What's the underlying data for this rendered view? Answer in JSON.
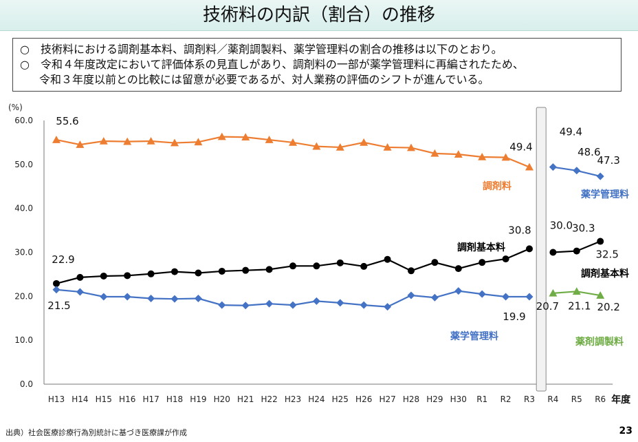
{
  "title": "技術料の内訳（割合）の推移",
  "notes": [
    "○　技術料における調剤基本料、調剤料／薬剤調製料、薬学管理料の割合の推移は以下のとおり。",
    "○　令和４年度改定において評価体系の見直しがあり、調剤料の一部が薬学管理料に再編されたため、",
    "令和３年度以前との比較には留意が必要であるが、対人業務の評価のシフトが進んでいる。"
  ],
  "source": "出典）社会医療診療行為別統計に基づき医療課が作成",
  "page_number": "23",
  "chart_data": {
    "type": "line",
    "title": "",
    "ylabel": "(%)",
    "xlabel": "年度",
    "ylim": [
      0,
      60
    ],
    "yticks": [
      "0.0",
      "10.0",
      "20.0",
      "30.0",
      "40.0",
      "50.0",
      "60.0"
    ],
    "grid": false,
    "categories": [
      "H13",
      "H14",
      "H15",
      "H16",
      "H17",
      "H18",
      "H19",
      "H20",
      "H21",
      "H22",
      "H23",
      "H24",
      "H25",
      "H26",
      "H27",
      "H28",
      "H29",
      "H30",
      "R1",
      "R2",
      "R3",
      "R4",
      "R5",
      "R6"
    ],
    "break_after": "R3",
    "series": [
      {
        "name": "調剤料",
        "color": "#ed7d31",
        "marker": "triangle",
        "values": [
          55.6,
          54.5,
          55.3,
          55.2,
          55.3,
          54.9,
          55.1,
          56.3,
          56.2,
          55.6,
          55.0,
          54.1,
          53.9,
          55.0,
          53.9,
          53.8,
          52.5,
          52.3,
          51.7,
          51.6,
          49.4,
          null,
          null,
          null
        ],
        "labels": [
          {
            "index": 0,
            "text": "55.6"
          },
          {
            "index": 20,
            "text": "49.4"
          }
        ]
      },
      {
        "name": "調剤基本料",
        "color": "#000000",
        "marker": "circle",
        "values": [
          22.9,
          24.3,
          24.6,
          24.7,
          25.1,
          25.6,
          25.3,
          25.7,
          25.9,
          26.1,
          26.9,
          26.9,
          27.6,
          26.8,
          28.4,
          25.8,
          27.7,
          26.3,
          27.7,
          28.5,
          30.8,
          null,
          null,
          null
        ],
        "labels": [
          {
            "index": 0,
            "text": "22.9"
          },
          {
            "index": 20,
            "text": "30.8"
          }
        ]
      },
      {
        "name": "薬学管理料",
        "color": "#4472c4",
        "marker": "diamond",
        "values": [
          21.5,
          21.0,
          19.9,
          19.9,
          19.5,
          19.4,
          19.5,
          18.0,
          17.9,
          18.3,
          18.0,
          18.9,
          18.5,
          18.0,
          17.6,
          20.2,
          19.7,
          21.2,
          20.5,
          19.9,
          19.9,
          null,
          null,
          null
        ],
        "labels": [
          {
            "index": 0,
            "text": "21.5"
          },
          {
            "index": 20,
            "text": "19.9"
          }
        ]
      },
      {
        "name": "薬学管理料",
        "color": "#4472c4",
        "marker": "diamond",
        "values": [
          null,
          null,
          null,
          null,
          null,
          null,
          null,
          null,
          null,
          null,
          null,
          null,
          null,
          null,
          null,
          null,
          null,
          null,
          null,
          null,
          null,
          49.4,
          48.6,
          47.3
        ],
        "labels": [
          {
            "index": 21,
            "text": "49.4"
          },
          {
            "index": 22,
            "text": "48.6"
          },
          {
            "index": 23,
            "text": "47.3"
          }
        ]
      },
      {
        "name": "調剤基本料",
        "color": "#000000",
        "marker": "circle",
        "values": [
          null,
          null,
          null,
          null,
          null,
          null,
          null,
          null,
          null,
          null,
          null,
          null,
          null,
          null,
          null,
          null,
          null,
          null,
          null,
          null,
          null,
          30.0,
          30.3,
          32.5
        ],
        "labels": [
          {
            "index": 21,
            "text": "30.0"
          },
          {
            "index": 22,
            "text": "30.3"
          },
          {
            "index": 23,
            "text": "32.5"
          }
        ]
      },
      {
        "name": "薬剤調製料",
        "color": "#70ad47",
        "marker": "triangle",
        "values": [
          null,
          null,
          null,
          null,
          null,
          null,
          null,
          null,
          null,
          null,
          null,
          null,
          null,
          null,
          null,
          null,
          null,
          null,
          null,
          null,
          null,
          20.7,
          21.1,
          20.2
        ],
        "labels": [
          {
            "index": 21,
            "text": "20.7"
          },
          {
            "index": 22,
            "text": "21.1"
          },
          {
            "index": 23,
            "text": "20.2"
          }
        ]
      }
    ]
  }
}
